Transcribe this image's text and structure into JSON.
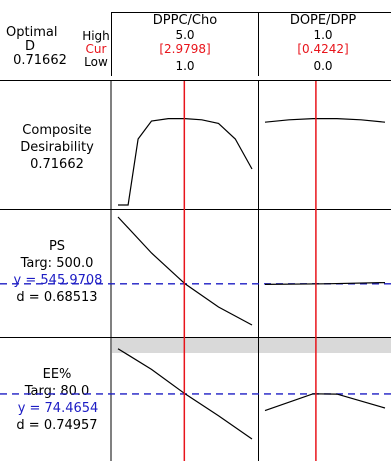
{
  "header": {
    "optimal_label": "Optimal",
    "d_label": "D",
    "d_value": "0.71662",
    "high_label": "High",
    "cur_label": "Cur",
    "low_label": "Low",
    "factors": [
      {
        "name": "DPPC/Cho",
        "high": "5.0",
        "cur": "[2.9798]",
        "low": "1.0"
      },
      {
        "name": "DOPE/DPP",
        "high": "1.0",
        "cur": "[0.4242]",
        "low": "0.0"
      }
    ]
  },
  "rows": [
    {
      "title_line1": "Composite",
      "title_line2": "Desirability",
      "value": "0.71662"
    },
    {
      "name": "PS",
      "target": "Targ: 500.0",
      "y_value": "y = 545.9708",
      "d_value": "d = 0.68513"
    },
    {
      "name": "EE%",
      "target": "Targ: 80.0",
      "y_value": "y = 74.4654",
      "d_value": "d = 0.74957"
    }
  ],
  "colors": {
    "current_line": "#e8141b",
    "target_line": "#1c1cc4",
    "highlight": "#d9d9d9",
    "curve": "#000000"
  },
  "chart_data": [
    {
      "type": "line",
      "title": "Composite Desirability",
      "series": [
        {
          "factor": "DPPC/Cho",
          "x": [
            1.0,
            1.3,
            1.6,
            2.0,
            2.5,
            3.0,
            3.5,
            4.0,
            4.5,
            5.0
          ],
          "y": [
            0.0,
            0.0,
            0.55,
            0.7,
            0.72,
            0.72,
            0.71,
            0.68,
            0.55,
            0.3
          ]
        },
        {
          "factor": "DOPE/DPP",
          "x": [
            0.0,
            0.2,
            0.4,
            0.6,
            0.8,
            1.0
          ],
          "y": [
            0.69,
            0.71,
            0.72,
            0.72,
            0.71,
            0.69
          ]
        }
      ]
    },
    {
      "type": "line",
      "title": "PS",
      "target": 500.0,
      "y": 545.9708,
      "series": [
        {
          "factor": "DPPC/Cho",
          "x": [
            1.0,
            2.0,
            3.0,
            4.0,
            5.0
          ],
          "y": [
            880,
            700,
            546,
            430,
            340
          ]
        },
        {
          "factor": "DOPE/DPP",
          "x": [
            0.0,
            0.5,
            1.0
          ],
          "y": [
            543,
            546,
            552
          ]
        }
      ]
    },
    {
      "type": "line",
      "title": "EE%",
      "target": 80.0,
      "y": 74.4654,
      "series": [
        {
          "factor": "DPPC/Cho",
          "x": [
            1.0,
            2.0,
            3.0,
            4.0,
            5.0
          ],
          "y": [
            92,
            84,
            74.5,
            66,
            57
          ]
        },
        {
          "factor": "DOPE/DPP",
          "x": [
            0.0,
            0.4,
            0.6,
            1.0
          ],
          "y": [
            68,
            74.5,
            74.4,
            69
          ]
        }
      ]
    }
  ]
}
